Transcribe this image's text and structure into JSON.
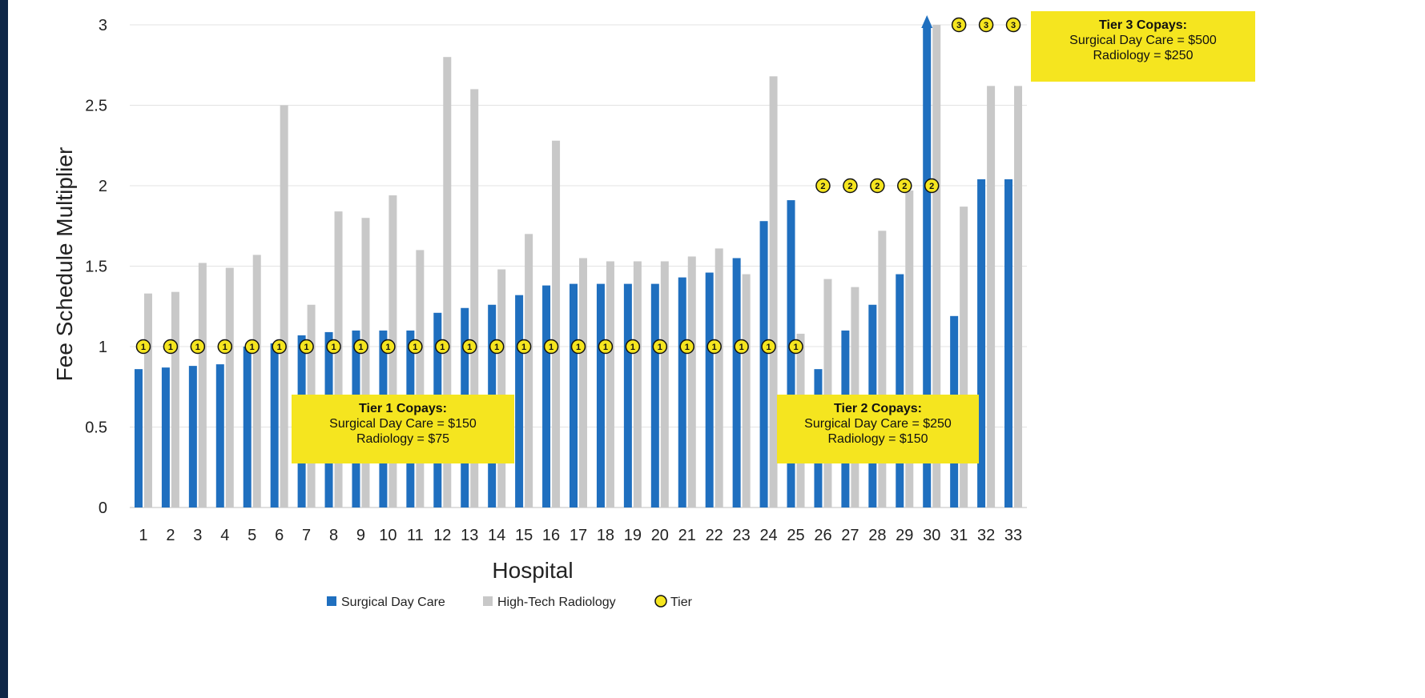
{
  "chart_data": {
    "type": "bar",
    "xlabel": "Hospital",
    "ylabel": "Fee Schedule Multiplier",
    "ylim": [
      0,
      3
    ],
    "yticks": [
      "0",
      "0.5",
      "1",
      "1.5",
      "2",
      "2.5",
      "3"
    ],
    "categories": [
      "1",
      "2",
      "3",
      "4",
      "5",
      "6",
      "7",
      "8",
      "9",
      "10",
      "11",
      "12",
      "13",
      "14",
      "15",
      "16",
      "17",
      "18",
      "19",
      "20",
      "21",
      "22",
      "23",
      "24",
      "25",
      "26",
      "27",
      "28",
      "29",
      "30",
      "31",
      "32",
      "33"
    ],
    "series": [
      {
        "name": "Surgical Day Care",
        "color": "#1f6fbf",
        "values": [
          0.86,
          0.87,
          0.88,
          0.89,
          1.0,
          1.02,
          1.07,
          1.09,
          1.1,
          1.1,
          1.1,
          1.21,
          1.24,
          1.26,
          1.32,
          1.38,
          1.39,
          1.39,
          1.39,
          1.39,
          1.43,
          1.46,
          1.55,
          1.78,
          1.91,
          0.86,
          1.1,
          1.26,
          1.45,
          3.0,
          1.19,
          2.04,
          2.04
        ]
      },
      {
        "name": "High-Tech Radiology",
        "color": "#c8c8c8",
        "values": [
          1.33,
          1.34,
          1.52,
          1.49,
          1.57,
          2.5,
          1.26,
          1.84,
          1.8,
          1.94,
          1.6,
          2.8,
          2.6,
          1.48,
          1.7,
          2.28,
          1.55,
          1.53,
          1.53,
          1.53,
          1.56,
          1.61,
          1.45,
          2.68,
          1.08,
          1.42,
          1.37,
          1.72,
          1.97,
          3.0,
          1.87,
          2.62,
          2.62
        ]
      },
      {
        "name": "Tier",
        "color": "#f5e51f",
        "values": [
          1,
          1,
          1,
          1,
          1,
          1,
          1,
          1,
          1,
          1,
          1,
          1,
          1,
          1,
          1,
          1,
          1,
          1,
          1,
          1,
          1,
          1,
          1,
          1,
          1,
          2,
          2,
          2,
          2,
          2,
          3,
          3,
          3
        ]
      }
    ],
    "tier_marker_levels": [
      1,
      1,
      1,
      1,
      1,
      1,
      1,
      1,
      1,
      1,
      1,
      1,
      1,
      1,
      1,
      1,
      1,
      1,
      1,
      1,
      1,
      1,
      1,
      1,
      1,
      2,
      2,
      2,
      2,
      2,
      3,
      3,
      3
    ],
    "legend": {
      "position": "bottom",
      "entries": [
        "Surgical Day Care",
        "High-Tech Radiology",
        "Tier"
      ]
    },
    "grid": true,
    "annotations": {
      "tier1": {
        "title": "Tier 1 Copays:",
        "line1": "Surgical Day Care = $150",
        "line2": "Radiology = $75"
      },
      "tier2": {
        "title": "Tier 2 Copays:",
        "line1": "Surgical Day Care = $250",
        "line2": "Radiology = $150"
      },
      "tier3": {
        "title": "Tier 3 Copays:",
        "line1": "Surgical Day Care = $500",
        "line2": "Radiology = $250"
      }
    }
  }
}
